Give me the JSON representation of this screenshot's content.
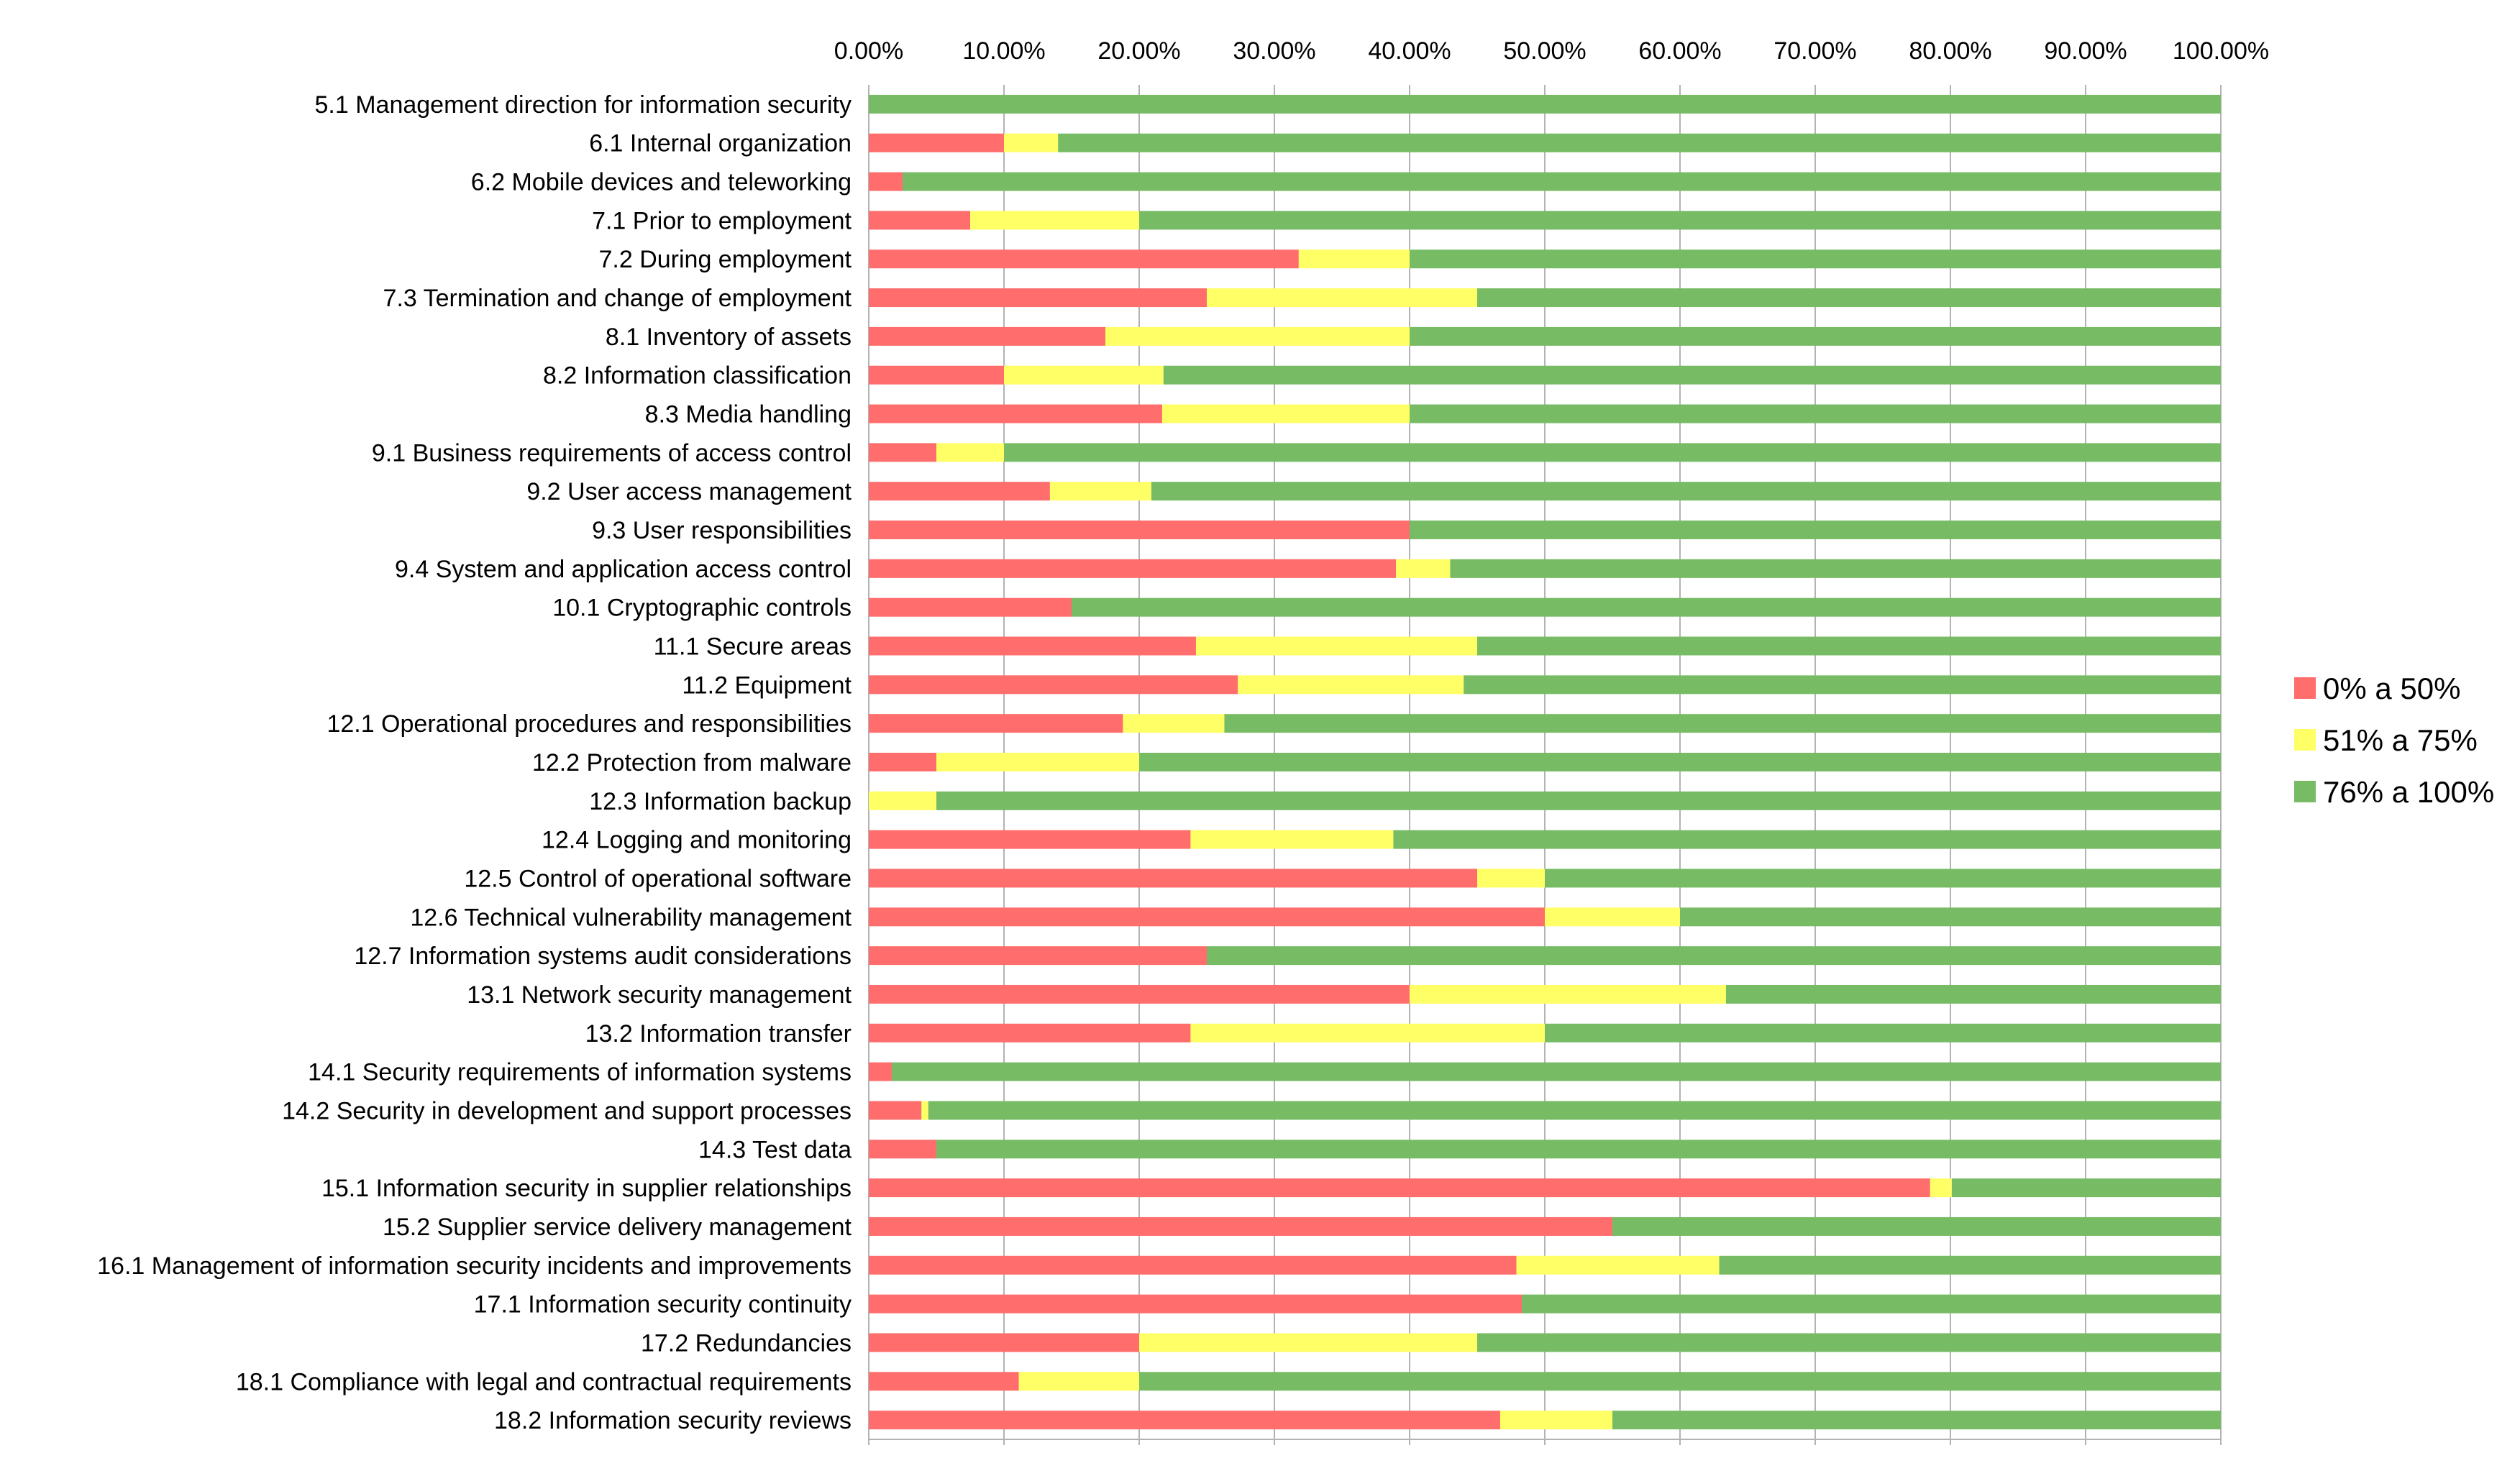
{
  "chart_data": {
    "type": "bar",
    "orientation": "horizontal",
    "stacked": true,
    "title": "",
    "xlabel": "",
    "ylabel": "",
    "xlim": [
      0,
      100
    ],
    "x_ticks": [
      "0.00%",
      "10.00%",
      "20.00%",
      "30.00%",
      "40.00%",
      "50.00%",
      "60.00%",
      "70.00%",
      "80.00%",
      "90.00%",
      "100.00%"
    ],
    "grid": true,
    "legend_position": "right",
    "categories": [
      "5.1 Management direction for information security",
      "6.1 Internal organization",
      "6.2 Mobile devices and teleworking",
      "7.1 Prior to employment",
      "7.2 During employment",
      "7.3 Termination and change of employment",
      "8.1 Inventory of assets",
      "8.2 Information classification",
      "8.3 Media handling",
      "9.1 Business requirements of access control",
      "9.2 User access management",
      "9.3 User responsibilities",
      "9.4 System and application access control",
      "10.1 Cryptographic controls",
      "11.1 Secure areas",
      "11.2 Equipment",
      "12.1 Operational procedures and responsibilities",
      "12.2 Protection from malware",
      "12.3 Information backup",
      "12.4 Logging and monitoring",
      "12.5 Control of operational software",
      "12.6 Technical vulnerability management",
      "12.7 Information systems audit considerations",
      "13.1 Network security management",
      "13.2 Information transfer",
      "14.1 Security requirements of information systems",
      "14.2 Security in development and support processes",
      "14.3 Test data",
      "15.1 Information security in supplier relationships",
      "15.2 Supplier service delivery management",
      "16.1 Management of information security incidents and improvements",
      "17.1 Information security continuity",
      "17.2 Redundancies",
      "18.1 Compliance with legal and contractual requirements",
      "18.2 Information security reviews"
    ],
    "series": [
      {
        "name": "0% a 50%",
        "color": "#ff6d6d",
        "values": [
          0,
          10,
          2.5,
          7.5,
          31.8,
          25,
          17.5,
          10,
          21.7,
          5,
          13.4,
          40,
          39,
          15,
          24.2,
          27.3,
          18.8,
          5,
          0,
          23.8,
          45,
          50,
          25,
          40,
          23.8,
          1.7,
          3.9,
          5,
          78.5,
          55,
          47.9,
          48.3,
          20,
          11.1,
          46.7
        ]
      },
      {
        "name": "51% a 75%",
        "color": "#ffff66",
        "values": [
          0,
          4,
          0,
          12.5,
          8.2,
          20,
          22.5,
          11.8,
          18.3,
          5,
          7.5,
          0,
          4,
          0,
          20.8,
          16.7,
          7.5,
          15,
          5,
          15,
          5,
          10,
          0,
          23.4,
          26.2,
          0,
          0.5,
          0,
          1.6,
          0,
          15,
          0,
          25,
          8.9,
          8.3
        ]
      },
      {
        "name": "76% a 100%",
        "color": "#77bc65",
        "values": [
          100,
          86,
          97.5,
          80,
          60,
          55,
          60,
          78.2,
          60,
          90,
          79.1,
          60,
          57,
          85,
          55,
          56,
          73.7,
          80,
          95,
          61.2,
          50,
          40,
          75,
          36.6,
          50,
          98.3,
          95.6,
          95,
          19.9,
          45,
          37.1,
          51.7,
          55,
          80,
          45
        ]
      }
    ]
  }
}
